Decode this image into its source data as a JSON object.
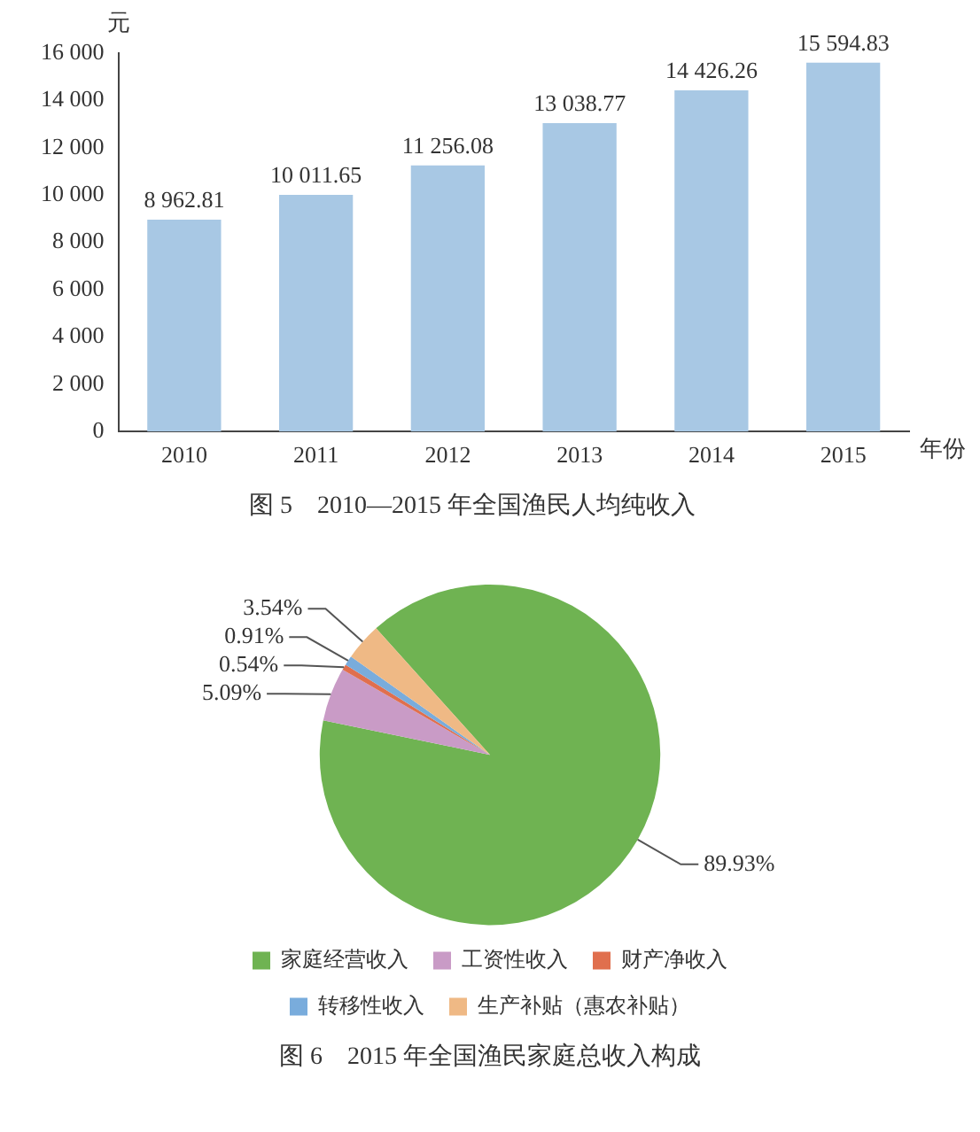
{
  "chart_data": [
    {
      "type": "bar",
      "title": "图 5　2010—2015 年全国渔民人均纯收入",
      "xlabel": "年份",
      "ylabel": "元",
      "categories": [
        "2010",
        "2011",
        "2012",
        "2013",
        "2014",
        "2015"
      ],
      "values": [
        8962.81,
        10011.65,
        11256.08,
        13038.77,
        14426.26,
        15594.83
      ],
      "value_labels": [
        "8 962.81",
        "10 011.65",
        "11 256.08",
        "13 038.77",
        "14 426.26",
        "15 594.83"
      ],
      "color": "#a8c8e4",
      "ylim": [
        0,
        16000
      ],
      "yticks": [
        {
          "value": 0,
          "label": "0"
        },
        {
          "value": 2000,
          "label": "2 000"
        },
        {
          "value": 4000,
          "label": "4 000"
        },
        {
          "value": 6000,
          "label": "6 000"
        },
        {
          "value": 8000,
          "label": "8 000"
        },
        {
          "value": 10000,
          "label": "10 000"
        },
        {
          "value": 12000,
          "label": "12 000"
        },
        {
          "value": 14000,
          "label": "14 000"
        },
        {
          "value": 16000,
          "label": "16 000"
        }
      ],
      "grid": false,
      "legend": false
    },
    {
      "type": "pie",
      "title": "图 6　2015 年全国渔民家庭总收入构成",
      "categories": [
        "家庭经营收入",
        "工资性收入",
        "财产净收入",
        "转移性收入",
        "生产补贴（惠农补贴）"
      ],
      "values": [
        89.93,
        5.09,
        0.54,
        0.91,
        3.54
      ],
      "value_labels": [
        "89.93%",
        "5.09%",
        "0.54%",
        "0.91%",
        "3.54%"
      ],
      "colors": [
        "#6fb352",
        "#c99bc6",
        "#e06f4e",
        "#79acdc",
        "#efb985"
      ],
      "legend": "bottom"
    }
  ]
}
